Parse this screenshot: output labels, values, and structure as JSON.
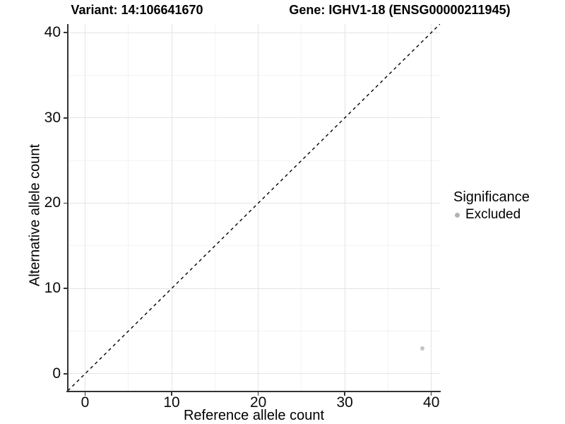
{
  "chart_data": {
    "type": "scatter",
    "titles": [
      "Variant: 14:106641670",
      "Gene: IGHV1-18 (ENSG00000211945)"
    ],
    "xlabel": "Reference allele count",
    "ylabel": "Alternative allele count",
    "xlim": [
      -2,
      41
    ],
    "ylim": [
      -2,
      41
    ],
    "x_ticks": [
      0,
      10,
      20,
      30,
      40
    ],
    "y_ticks": [
      0,
      10,
      20,
      30,
      40
    ],
    "x_minor_ticks": [
      5,
      15,
      25,
      35
    ],
    "y_minor_ticks": [
      5,
      15,
      25,
      35
    ],
    "grid": true,
    "points": [
      {
        "x": 39,
        "y": 3,
        "series": "Excluded",
        "color": "#c4c4c4"
      }
    ],
    "reference_line": {
      "type": "identity",
      "style": "dashed",
      "color": "#000000"
    },
    "legend": {
      "title": "Significance",
      "position": "right",
      "items": [
        {
          "label": "Excluded",
          "color": "#b3b3b3"
        }
      ]
    },
    "colors": {
      "axis_line": "#333333",
      "grid_major": "#e4e4e4",
      "grid_minor": "#f3f3f3",
      "text": "#000000"
    }
  }
}
